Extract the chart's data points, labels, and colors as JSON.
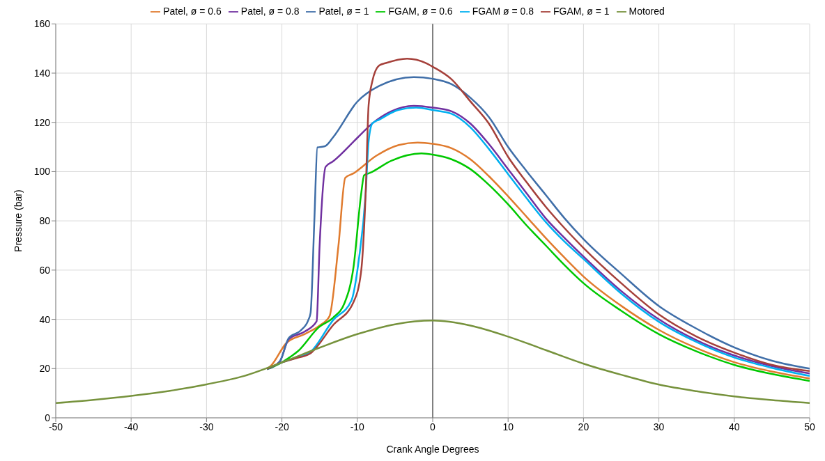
{
  "chart_data": {
    "type": "line",
    "xlabel": "Crank Angle Degrees",
    "ylabel": "Pressure (bar)",
    "xlim": [
      -50,
      50
    ],
    "xticks": [
      -50,
      -40,
      -30,
      -20,
      -10,
      0,
      10,
      20,
      30,
      40,
      50
    ],
    "ylim": [
      0,
      160
    ],
    "yticks": [
      0,
      20,
      40,
      60,
      80,
      100,
      120,
      140,
      160
    ],
    "grid": true,
    "legend": "top",
    "marker": "none",
    "line_style": "solid",
    "ref_lines": [
      {
        "axis": "x",
        "value": 0,
        "color": "#808080"
      }
    ],
    "series": [
      {
        "name": "Patel, ø = 0.6",
        "color": "#e07b2e",
        "x": [
          -22,
          -21.5,
          -19.4,
          -17,
          -15,
          -13.7,
          -12.5,
          -11.6,
          -10.5,
          -7.5,
          -4.5,
          -2,
          0,
          2.5,
          5,
          7.5,
          10,
          12.5,
          15,
          17.5,
          20,
          25,
          30,
          35,
          40,
          45,
          50
        ],
        "values": [
          19.8,
          21,
          30.4,
          34,
          37.5,
          41.2,
          70,
          97.5,
          99.3,
          106.4,
          110.8,
          111.8,
          111.3,
          109.5,
          105,
          98,
          90,
          81.5,
          73,
          65,
          57.4,
          45.5,
          35.7,
          28.3,
          22.6,
          18.8,
          16
        ]
      },
      {
        "name": "Patel, ø = 0.8",
        "color": "#7030a0",
        "x": [
          -22,
          -20.3,
          -19.1,
          -17,
          -15.4,
          -15,
          -14.2,
          -13.2,
          -10,
          -8,
          -5.5,
          -2.5,
          0,
          2.5,
          5,
          7.5,
          10,
          12.5,
          15,
          17.5,
          20,
          25,
          30,
          35,
          40,
          45,
          50
        ],
        "values": [
          19.8,
          22.8,
          31.9,
          35,
          39.2,
          70,
          102,
          104.2,
          113.7,
          119.6,
          124.5,
          126.7,
          126,
          124.5,
          119.5,
          111,
          101,
          91,
          81,
          73,
          65.5,
          51.5,
          40,
          31.5,
          25.3,
          21,
          18
        ]
      },
      {
        "name": "Patel, ø = 1",
        "color": "#3f6ea8",
        "x": [
          -22,
          -20.3,
          -19.1,
          -17.5,
          -16.5,
          -16.2,
          -15.7,
          -15.3,
          -14.3,
          -13.2,
          -10,
          -7.1,
          -2.5,
          0,
          2.5,
          5,
          7.5,
          10,
          12.5,
          15,
          17.5,
          20,
          25,
          30,
          35,
          40,
          45,
          50
        ],
        "values": [
          19.8,
          22.8,
          32.4,
          35.5,
          39.7,
          42.6,
          80,
          109.8,
          110.3,
          114,
          128.4,
          134.8,
          138.4,
          137.7,
          135.5,
          130,
          122,
          110,
          100,
          90.5,
          81,
          72.6,
          58.5,
          45.4,
          36.2,
          28.6,
          23.2,
          20
        ]
      },
      {
        "name": "FGAM, ø = 0.6",
        "color": "#00c800",
        "x": [
          -22,
          -20,
          -19,
          -17.9,
          -15.1,
          -13.2,
          -11.7,
          -10.5,
          -9.5,
          -9.1,
          -8.3,
          -5.5,
          -1.5,
          0,
          2.5,
          5,
          7.5,
          10,
          12.5,
          15,
          17.5,
          20,
          25,
          30,
          35,
          40,
          45,
          50
        ],
        "values": [
          19.8,
          22.5,
          24.5,
          27,
          36.8,
          40.7,
          46.6,
          61.3,
          90.7,
          98.5,
          99.5,
          104.4,
          107.4,
          106.9,
          105,
          101,
          94.5,
          86.7,
          78,
          70,
          62,
          54.7,
          43.5,
          34,
          27,
          21.5,
          17.8,
          15
        ]
      },
      {
        "name": "FGAM ø = 0.8",
        "color": "#00b0f0",
        "x": [
          -22,
          -20,
          -18,
          -16.3,
          -13.2,
          -10.8,
          -9.8,
          -8.9,
          -8.5,
          -8,
          -7.1,
          -4.6,
          -2.2,
          0,
          2.5,
          5,
          7.5,
          10,
          12.5,
          15,
          17.5,
          20,
          25,
          30,
          35,
          40,
          45,
          50
        ],
        "values": [
          19.8,
          22.5,
          24.5,
          26.5,
          39.7,
          47.5,
          64.2,
          90.7,
          112.3,
          119.6,
          121.1,
          125,
          126,
          125,
          123.5,
          118,
          109,
          99,
          89,
          79.5,
          71.5,
          64.5,
          50.5,
          39,
          30.8,
          24.5,
          20.3,
          17
        ]
      },
      {
        "name": "FGAM, ø = 1",
        "color": "#a5403a",
        "x": [
          -22,
          -20,
          -18,
          -16.3,
          -13.2,
          -10.5,
          -9.5,
          -8.9,
          -8.5,
          -8,
          -7.1,
          -6.2,
          -3.4,
          -0.9,
          0,
          2.5,
          5,
          7.5,
          10,
          12.5,
          15,
          17.5,
          20,
          25,
          30,
          35,
          40,
          45,
          50
        ],
        "values": [
          19.8,
          22.5,
          24.3,
          26,
          37.7,
          47,
          59.3,
          90.7,
          127,
          136.8,
          143.1,
          144.1,
          145.9,
          144.1,
          142.6,
          137.5,
          128.5,
          119.3,
          106,
          95.5,
          85.7,
          77,
          69,
          54.7,
          42,
          33,
          26.5,
          21.5,
          19
        ]
      },
      {
        "name": "Motored",
        "color": "#76923c",
        "x": [
          -50,
          -45,
          -40,
          -35,
          -30,
          -25,
          -20,
          -15,
          -10,
          -5,
          0,
          5,
          10,
          15,
          20,
          25,
          30,
          35,
          40,
          45,
          50
        ],
        "values": [
          6,
          7.3,
          8.9,
          10.9,
          13.6,
          17,
          22.5,
          28.5,
          34,
          38,
          39.5,
          37.5,
          33,
          27.5,
          22,
          17.5,
          13.5,
          10.8,
          8.7,
          7.2,
          6
        ]
      }
    ]
  }
}
